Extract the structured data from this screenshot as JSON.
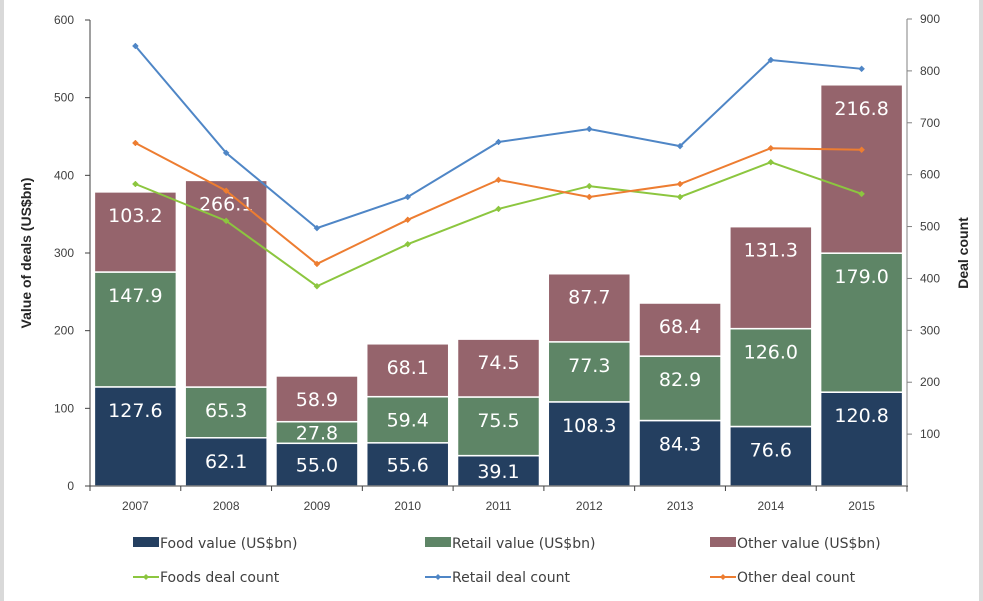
{
  "chart_data": {
    "type": "bar",
    "subtype": "stacked-bar-with-lines",
    "title": "",
    "xlabel": "",
    "ylabel": "Value of deals (US$bn)",
    "y2label": "Deal count",
    "ylim": [
      0,
      600
    ],
    "y2lim": [
      0,
      900
    ],
    "yticks": [
      "0",
      "100",
      "200",
      "300",
      "400",
      "500",
      "600"
    ],
    "y2ticks": [
      "100",
      "200",
      "300",
      "400",
      "500",
      "600",
      "700",
      "800",
      "900"
    ],
    "categories": [
      "2007",
      "2008",
      "2009",
      "2010",
      "2011",
      "2012",
      "2013",
      "2014",
      "2015"
    ],
    "series": [
      {
        "name": "Food value (US$bn)",
        "kind": "bar",
        "color": "#243F60",
        "values": [
          127.6,
          62.1,
          55.0,
          55.6,
          39.1,
          108.3,
          84.3,
          76.6,
          120.8
        ],
        "labels": [
          "127.6",
          "62.1",
          "55.0",
          "55.6",
          "39.1",
          "108.3",
          "84.3",
          "76.6",
          "120.8"
        ]
      },
      {
        "name": "Retail value (US$bn)",
        "kind": "bar",
        "color": "#5E8566",
        "values": [
          147.9,
          65.3,
          27.8,
          59.4,
          75.5,
          77.3,
          82.9,
          126.0,
          179.0
        ],
        "labels": [
          "147.9",
          "65.3",
          "27.8",
          "59.4",
          "75.5",
          "77.3",
          "82.9",
          "126.0",
          "179.0"
        ]
      },
      {
        "name": "Other value (US$bn)",
        "kind": "bar",
        "color": "#95646C",
        "values": [
          103.2,
          266.1,
          58.9,
          68.1,
          74.5,
          87.7,
          68.4,
          131.3,
          216.8
        ],
        "labels": [
          "103.2",
          "266.1",
          "58.9",
          "68.1",
          "74.5",
          "87.7",
          "68.4",
          "131.3",
          "216.8"
        ]
      },
      {
        "name": "Foods deal count",
        "kind": "line",
        "axis": "right",
        "color": "#8CC63F",
        "values": [
          582,
          511,
          385,
          466,
          534,
          578,
          557,
          624,
          563
        ]
      },
      {
        "name": "Retail deal count",
        "kind": "line",
        "axis": "right",
        "color": "#4F86C6",
        "values": [
          848,
          642,
          497,
          557,
          663,
          688,
          655,
          821,
          804
        ]
      },
      {
        "name": "Other deal count",
        "kind": "line",
        "axis": "right",
        "color": "#ED7D31",
        "values": [
          661,
          569,
          428,
          513,
          590,
          557,
          582,
          651,
          648
        ]
      }
    ],
    "legend_position": "bottom",
    "grid": false
  }
}
